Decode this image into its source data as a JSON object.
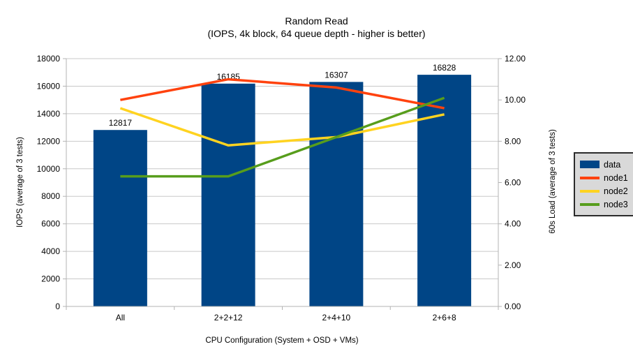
{
  "title": {
    "line1": "Random Read",
    "line2": "(IOPS, 4k block, 64 queue depth - higher is better)"
  },
  "chart_data": {
    "type": "bar",
    "subtype": "bar-with-line-overlay",
    "categories": [
      "All",
      "2+2+12",
      "2+4+10",
      "2+6+8"
    ],
    "bar_series": {
      "name": "data",
      "values": [
        12817,
        16185,
        16307,
        16828
      ],
      "data_labels": [
        "12817",
        "16185",
        "16307",
        "16828"
      ],
      "color": "#004586",
      "axis": "left"
    },
    "line_series": [
      {
        "name": "node1",
        "color": "#ff420e",
        "axis": "right",
        "values": [
          10.0,
          11.0,
          10.6,
          9.6
        ]
      },
      {
        "name": "node2",
        "color": "#ffd320",
        "axis": "right",
        "values": [
          9.6,
          7.8,
          8.2,
          9.3
        ]
      },
      {
        "name": "node3",
        "color": "#579d1c",
        "axis": "right",
        "values": [
          6.3,
          6.3,
          8.2,
          10.1
        ]
      }
    ],
    "left_axis": {
      "title": "IOPS (average of 3 tests)",
      "min": 0,
      "max": 18000,
      "step": 2000,
      "decimals": 0
    },
    "right_axis": {
      "title": "60s Load (average of 3 tests)",
      "min": 0,
      "max": 12,
      "step": 2,
      "decimals": 2
    },
    "x_axis": {
      "title": "CPU Configuration (System + OSD + VMs)"
    },
    "legend": {
      "position": "right",
      "entries": [
        {
          "label": "data",
          "color": "#004586",
          "swatch": "bar"
        },
        {
          "label": "node1",
          "color": "#ff420e",
          "swatch": "line"
        },
        {
          "label": "node2",
          "color": "#ffd320",
          "swatch": "line"
        },
        {
          "label": "node3",
          "color": "#579d1c",
          "swatch": "line"
        }
      ]
    },
    "grid": true,
    "style_colors": {
      "grid_line": "#c8c8c8",
      "axis_line": "#b3b3b3",
      "text": "#000000",
      "background": "#ffffff",
      "legend_background": "#d9d9d9",
      "legend_border": "#2b2b2b"
    }
  }
}
